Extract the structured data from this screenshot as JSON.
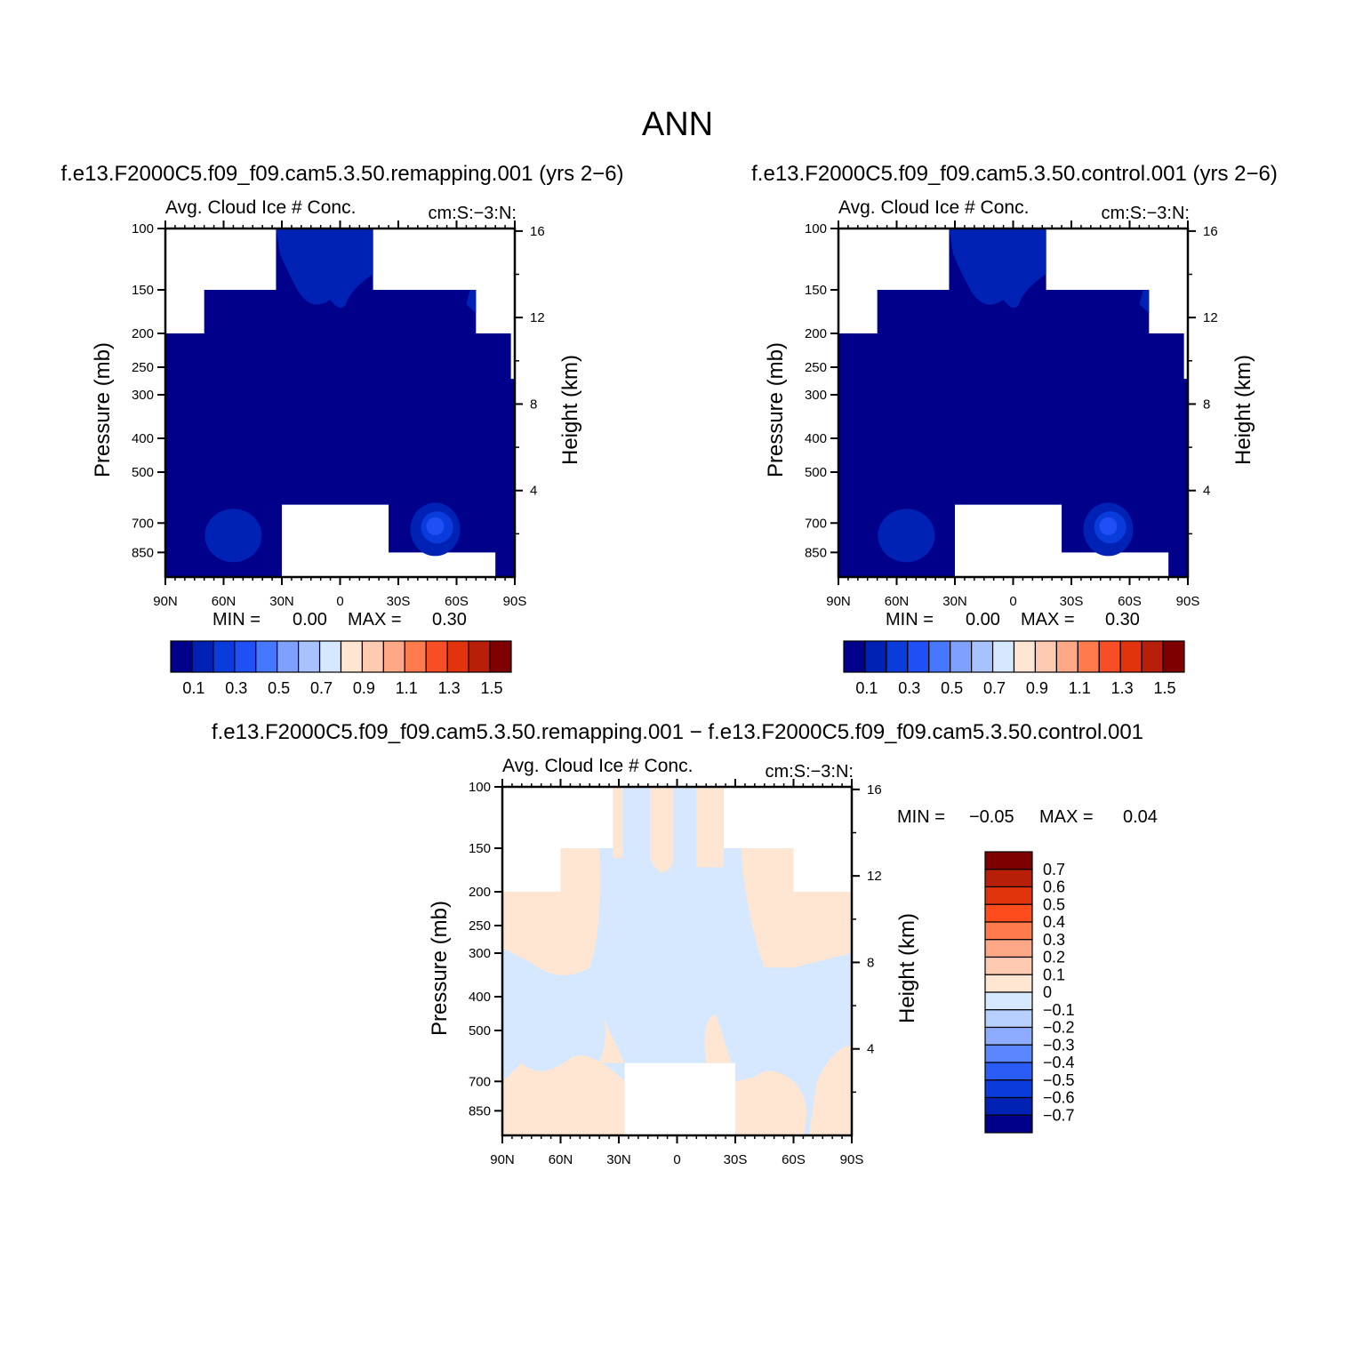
{
  "figure_title": "ANN",
  "chart_data": [
    {
      "id": "remapping",
      "type": "heatmap",
      "case_title": "f.e13.F2000C5.f09_f09.cam5.3.50.remapping.001 (yrs 2-6)",
      "title": "Avg. Cloud Ice # Conc.",
      "units": "cm:S:-3:N:",
      "xlabel": "",
      "ylabel": "Pressure (mb)",
      "ylabel_right": "Height (km)",
      "x_ticks": [
        "90N",
        "60N",
        "30N",
        "0",
        "30S",
        "60S",
        "90S"
      ],
      "x_range": [
        90,
        -90
      ],
      "y_ticks": [
        100,
        150,
        200,
        250,
        300,
        400,
        500,
        700,
        850
      ],
      "y_range": [
        100,
        1000
      ],
      "y_scale": "log",
      "y_right_ticks": [
        16,
        12,
        8,
        4
      ],
      "min_label": "MIN =",
      "min_value": "0.00",
      "max_label": "MAX =",
      "max_value": "0.30",
      "colorbar_labels": [
        "0.1",
        "0.3",
        "0.5",
        "0.7",
        "0.9",
        "1.1",
        "1.3",
        "1.5"
      ]
    },
    {
      "id": "control",
      "type": "heatmap",
      "case_title": "f.e13.F2000C5.f09_f09.cam5.3.50.control.001 (yrs 2-6)",
      "title": "Avg. Cloud Ice # Conc.",
      "units": "cm:S:-3:N:",
      "xlabel": "",
      "ylabel": "Pressure (mb)",
      "ylabel_right": "Height (km)",
      "x_ticks": [
        "90N",
        "60N",
        "30N",
        "0",
        "30S",
        "60S",
        "90S"
      ],
      "x_range": [
        90,
        -90
      ],
      "y_ticks": [
        100,
        150,
        200,
        250,
        300,
        400,
        500,
        700,
        850
      ],
      "y_range": [
        100,
        1000
      ],
      "y_scale": "log",
      "y_right_ticks": [
        16,
        12,
        8,
        4
      ],
      "min_label": "MIN =",
      "min_value": "0.00",
      "max_label": "MAX =",
      "max_value": "0.30",
      "colorbar_labels": [
        "0.1",
        "0.3",
        "0.5",
        "0.7",
        "0.9",
        "1.1",
        "1.3",
        "1.5"
      ]
    },
    {
      "id": "difference",
      "type": "heatmap",
      "case_title": "f.e13.F2000C5.f09_f09.cam5.3.50.remapping.001 - f.e13.F2000C5.f09_f09.cam5.3.50.control.001",
      "title": "Avg. Cloud Ice # Conc.",
      "units": "cm:S:-3:N:",
      "xlabel": "",
      "ylabel": "Pressure (mb)",
      "ylabel_right": "Height (km)",
      "x_ticks": [
        "90N",
        "60N",
        "30N",
        "0",
        "30S",
        "60S",
        "90S"
      ],
      "x_range": [
        90,
        -90
      ],
      "y_ticks": [
        100,
        150,
        200,
        250,
        300,
        400,
        500,
        700,
        850
      ],
      "y_range": [
        100,
        1000
      ],
      "y_scale": "log",
      "y_right_ticks": [
        16,
        12,
        8,
        4
      ],
      "min_label": "MIN =",
      "min_value": "-0.05",
      "max_label": "MAX =",
      "max_value": "0.04",
      "colorbar_labels": [
        "0.7",
        "0.6",
        "0.5",
        "0.4",
        "0.3",
        "0.2",
        "0.1",
        "0",
        "-0.1",
        "-0.2",
        "-0.3",
        "-0.4",
        "-0.5",
        "-0.6",
        "-0.7"
      ]
    }
  ],
  "colors": {
    "panel_colorbar": [
      "#00008b",
      "#0022b4",
      "#0a3bdb",
      "#1e50f5",
      "#4678ff",
      "#7ea0ff",
      "#a8c1ff",
      "#d6e8ff",
      "#ffe6d2",
      "#ffcab2",
      "#ffa887",
      "#ff7a4c",
      "#f84e26",
      "#e2340c",
      "#b81f08",
      "#7f0000"
    ],
    "diff_colorbar": [
      "#7f0000",
      "#b81f08",
      "#e2340c",
      "#ff4c1c",
      "#ff7a4c",
      "#ffa887",
      "#ffcab2",
      "#ffe6d2",
      "#d6e8ff",
      "#b8d0ff",
      "#8eacff",
      "#5c86ff",
      "#2b5cf5",
      "#0a3bdb",
      "#0022b4",
      "#00008b"
    ]
  }
}
